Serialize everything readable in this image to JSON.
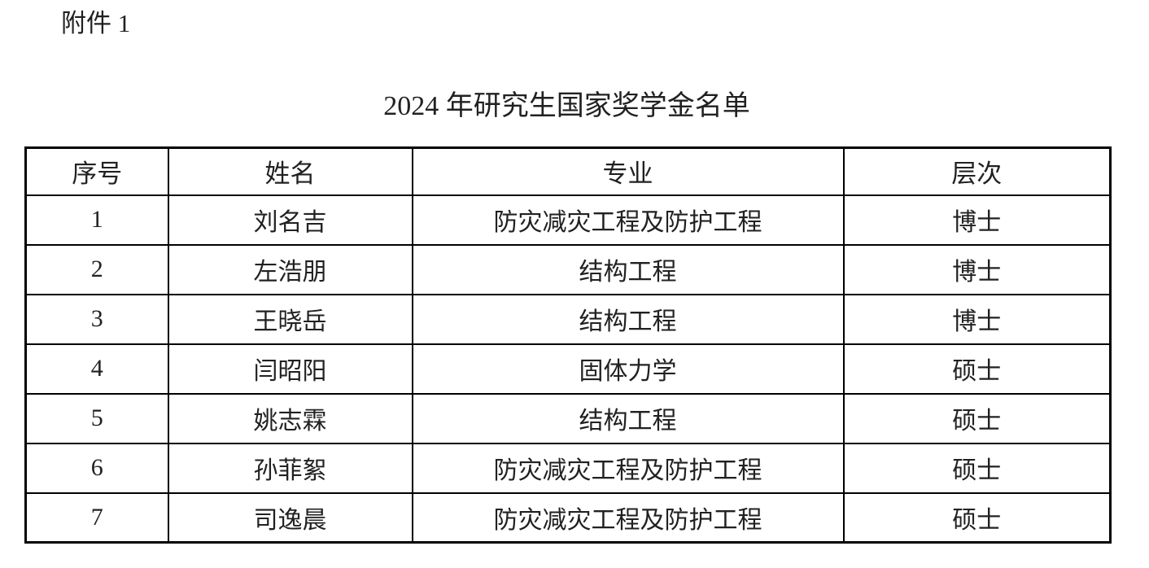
{
  "page": {
    "attachment_label": "附件 1",
    "title": "2024 年研究生国家奖学金名单"
  },
  "table": {
    "headers": [
      "序号",
      "姓名",
      "专业",
      "层次"
    ],
    "rows": [
      {
        "no": "1",
        "name": "刘名吉",
        "major": "防灾减灾工程及防护工程",
        "level": "博士"
      },
      {
        "no": "2",
        "name": "左浩朋",
        "major": "结构工程",
        "level": "博士"
      },
      {
        "no": "3",
        "name": "王晓岳",
        "major": "结构工程",
        "level": "博士"
      },
      {
        "no": "4",
        "name": "闫昭阳",
        "major": "固体力学",
        "level": "硕士"
      },
      {
        "no": "5",
        "name": "姚志霖",
        "major": "结构工程",
        "level": "硕士"
      },
      {
        "no": "6",
        "name": "孙菲絮",
        "major": "防灾减灾工程及防护工程",
        "level": "硕士"
      },
      {
        "no": "7",
        "name": "司逸晨",
        "major": "防灾减灾工程及防护工程",
        "level": "硕士"
      }
    ]
  },
  "colors": {
    "text": "#212121",
    "border": "#000000",
    "background": "#ffffff"
  }
}
